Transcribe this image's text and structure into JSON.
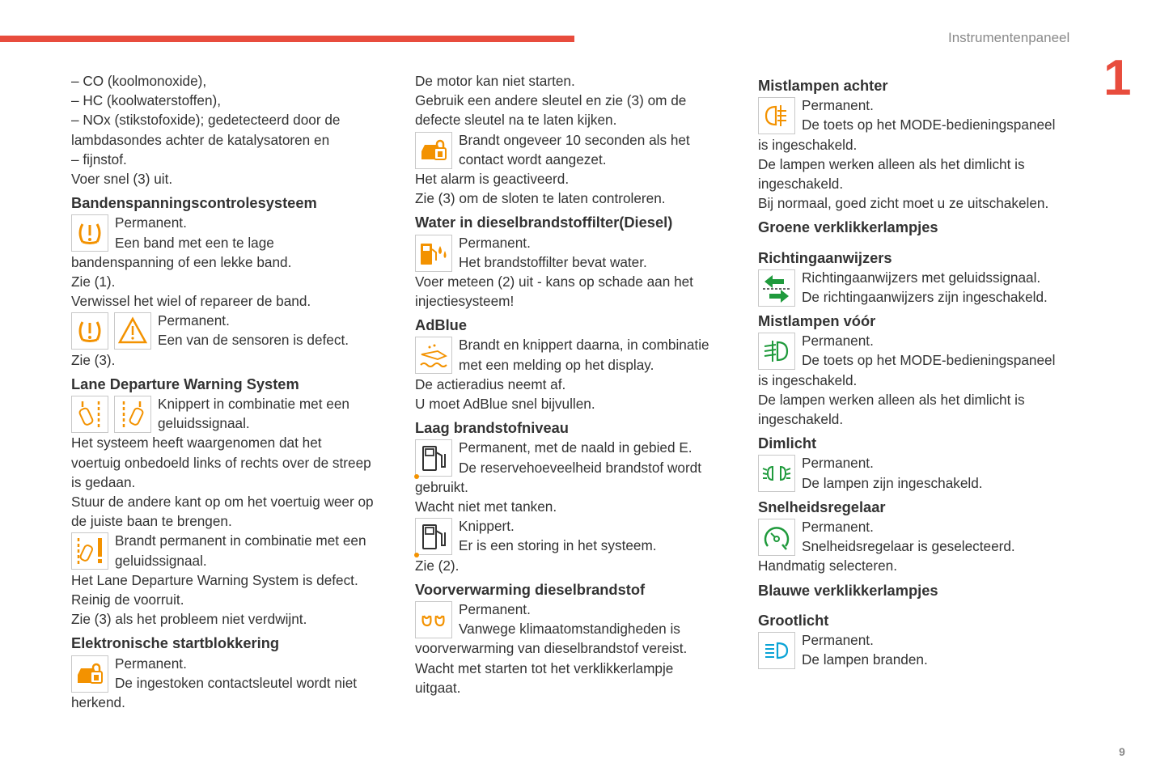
{
  "header": {
    "running_title": "Instrumentenpaneel",
    "chapter_number": "1",
    "page_number": "9"
  },
  "colors": {
    "accent_red": "#e84c3d",
    "orange": "#f39200",
    "green": "#1f9a3c",
    "blue": "#0aa3d6"
  },
  "columns": [
    [
      {
        "type": "line",
        "text": "–  CO (koolmonoxide),"
      },
      {
        "type": "line",
        "text": "–  HC (koolwaterstoffen),"
      },
      {
        "type": "line",
        "text": "–  NOx (stikstofoxide); gedetecteerd door de"
      },
      {
        "type": "line",
        "text": "lambdasondes achter de katalysatoren en"
      },
      {
        "type": "line",
        "text": "–  fijnstof."
      },
      {
        "type": "line",
        "text": "Voer snel (3) uit."
      },
      {
        "type": "heading",
        "text": "Bandenspanningscontrolesysteem"
      },
      {
        "type": "icon",
        "icons": [
          "tyre-pressure"
        ],
        "lines": [
          "Permanent.",
          "Een band met een te lage"
        ]
      },
      {
        "type": "line",
        "text": "bandenspanning of een lekke band."
      },
      {
        "type": "line",
        "text": "Zie (1)."
      },
      {
        "type": "line",
        "text": "Verwissel het wiel of repareer de band."
      },
      {
        "type": "icon",
        "icons": [
          "tyre-pressure",
          "warning-triangle"
        ],
        "lines": [
          "Permanent.",
          "Een van de sensoren is defect."
        ]
      },
      {
        "type": "line",
        "text": "Zie (3)."
      },
      {
        "type": "heading",
        "text": "Lane Departure Warning System"
      },
      {
        "type": "icon",
        "icons": [
          "lane-departure-left",
          "lane-departure-right"
        ],
        "lines": [
          "Knippert in combinatie met een",
          "geluidssignaal."
        ]
      },
      {
        "type": "line",
        "text": "Het systeem heeft waargenomen dat het"
      },
      {
        "type": "line",
        "text": "voertuig onbedoeld links of rechts over de streep"
      },
      {
        "type": "line",
        "text": "is gedaan."
      },
      {
        "type": "line",
        "text": "Stuur de andere kant op om het voertuig weer op"
      },
      {
        "type": "line",
        "text": "de juiste baan te brengen."
      },
      {
        "type": "icon",
        "icons": [
          "lane-departure-fault"
        ],
        "lines": [
          "Brandt permanent in combinatie met een",
          "geluidssignaal."
        ]
      },
      {
        "type": "line",
        "text": "Het Lane Departure Warning System is defect."
      },
      {
        "type": "line",
        "text": "Reinig de voorruit."
      },
      {
        "type": "line",
        "text": "Zie (3) als het probleem niet verdwijnt."
      },
      {
        "type": "heading",
        "text": "Elektronische startblokkering"
      },
      {
        "type": "icon",
        "icons": [
          "immobilizer"
        ],
        "lines": [
          "Permanent.",
          "De ingestoken contactsleutel wordt niet"
        ]
      },
      {
        "type": "line",
        "text": "herkend."
      }
    ],
    [
      {
        "type": "line",
        "text": "De motor kan niet starten."
      },
      {
        "type": "line",
        "text": "Gebruik een andere sleutel en zie (3) om de"
      },
      {
        "type": "line",
        "text": "defecte sleutel na te laten kijken."
      },
      {
        "type": "icon",
        "icons": [
          "immobilizer"
        ],
        "lines": [
          "Brandt ongeveer 10 seconden als het",
          "contact wordt aangezet."
        ]
      },
      {
        "type": "line",
        "text": "Het alarm is geactiveerd."
      },
      {
        "type": "line",
        "text": "Zie (3) om de sloten te laten controleren."
      },
      {
        "type": "heading",
        "text": "Water in dieselbrandstoffilter(Diesel)"
      },
      {
        "type": "icon",
        "icons": [
          "water-in-fuel"
        ],
        "lines": [
          "Permanent.",
          "Het brandstoffilter bevat water."
        ]
      },
      {
        "type": "line",
        "text": "Voer meteen (2) uit - kans op schade aan het"
      },
      {
        "type": "line",
        "text": "injectiesysteem!"
      },
      {
        "type": "heading",
        "text": "AdBlue"
      },
      {
        "type": "icon",
        "icons": [
          "adblue"
        ],
        "lines": [
          "Brandt en knippert daarna, in combinatie",
          "met een melding op het display."
        ]
      },
      {
        "type": "line",
        "text": "De actieradius neemt af."
      },
      {
        "type": "line",
        "text": "U moet AdBlue snel bijvullen."
      },
      {
        "type": "heading",
        "text": "Laag brandstofniveau"
      },
      {
        "type": "icon",
        "icons": [
          "fuel-level"
        ],
        "lines": [
          "Permanent, met de naald in gebied E.",
          "De reservehoeveelheid brandstof wordt"
        ]
      },
      {
        "type": "line",
        "text": "gebruikt."
      },
      {
        "type": "line",
        "text": "Wacht niet met tanken."
      },
      {
        "type": "icon",
        "icons": [
          "fuel-level"
        ],
        "lines": [
          "Knippert.",
          "Er is een storing in het systeem."
        ]
      },
      {
        "type": "line",
        "text": "Zie (2)."
      },
      {
        "type": "heading",
        "text": "Voorverwarming dieselbrandstof"
      },
      {
        "type": "icon",
        "icons": [
          "diesel-preheat"
        ],
        "lines": [
          "Permanent.",
          "Vanwege klimaatomstandigheden is"
        ]
      },
      {
        "type": "line",
        "text": "voorverwarming van dieselbrandstof vereist."
      },
      {
        "type": "line",
        "text": "Wacht met starten tot het verklikkerlampje"
      },
      {
        "type": "line",
        "text": "uitgaat."
      }
    ],
    [
      {
        "type": "heading",
        "text": "Mistlampen achter"
      },
      {
        "type": "icon",
        "icons": [
          "rear-fog-lamp"
        ],
        "lines": [
          "Permanent.",
          "De toets op het MODE-bedieningspaneel"
        ]
      },
      {
        "type": "line",
        "text": "is ingeschakeld."
      },
      {
        "type": "line",
        "text": "De lampen werken alleen als het dimlicht is"
      },
      {
        "type": "line",
        "text": "ingeschakeld."
      },
      {
        "type": "line",
        "text": "Bij normaal, goed zicht moet u ze uitschakelen."
      },
      {
        "type": "section",
        "text": "Groene verklikkerlampjes"
      },
      {
        "type": "heading",
        "text": "Richtingaanwijzers"
      },
      {
        "type": "icon",
        "icons": [
          "turn-signals"
        ],
        "lines": [
          "Richtingaanwijzers met geluidssignaal.",
          "De richtingaanwijzers zijn ingeschakeld."
        ]
      },
      {
        "type": "heading",
        "text": "Mistlampen vóór"
      },
      {
        "type": "icon",
        "icons": [
          "front-fog-lamp"
        ],
        "lines": [
          "Permanent.",
          "De toets op het MODE-bedieningspaneel"
        ]
      },
      {
        "type": "line",
        "text": "is ingeschakeld."
      },
      {
        "type": "line",
        "text": "De lampen werken alleen als het dimlicht is"
      },
      {
        "type": "line",
        "text": "ingeschakeld."
      },
      {
        "type": "heading",
        "text": "Dimlicht"
      },
      {
        "type": "icon",
        "icons": [
          "low-beam"
        ],
        "lines": [
          "Permanent.",
          "De lampen zijn ingeschakeld."
        ]
      },
      {
        "type": "heading",
        "text": "Snelheidsregelaar"
      },
      {
        "type": "icon",
        "icons": [
          "cruise-control"
        ],
        "lines": [
          "Permanent.",
          "Snelheidsregelaar is geselecteerd."
        ]
      },
      {
        "type": "line",
        "text": "Handmatig selecteren."
      },
      {
        "type": "section",
        "text": "Blauwe verklikkerlampjes"
      },
      {
        "type": "heading",
        "text": "Grootlicht"
      },
      {
        "type": "icon",
        "icons": [
          "high-beam"
        ],
        "lines": [
          "Permanent.",
          "De lampen branden."
        ]
      }
    ]
  ]
}
